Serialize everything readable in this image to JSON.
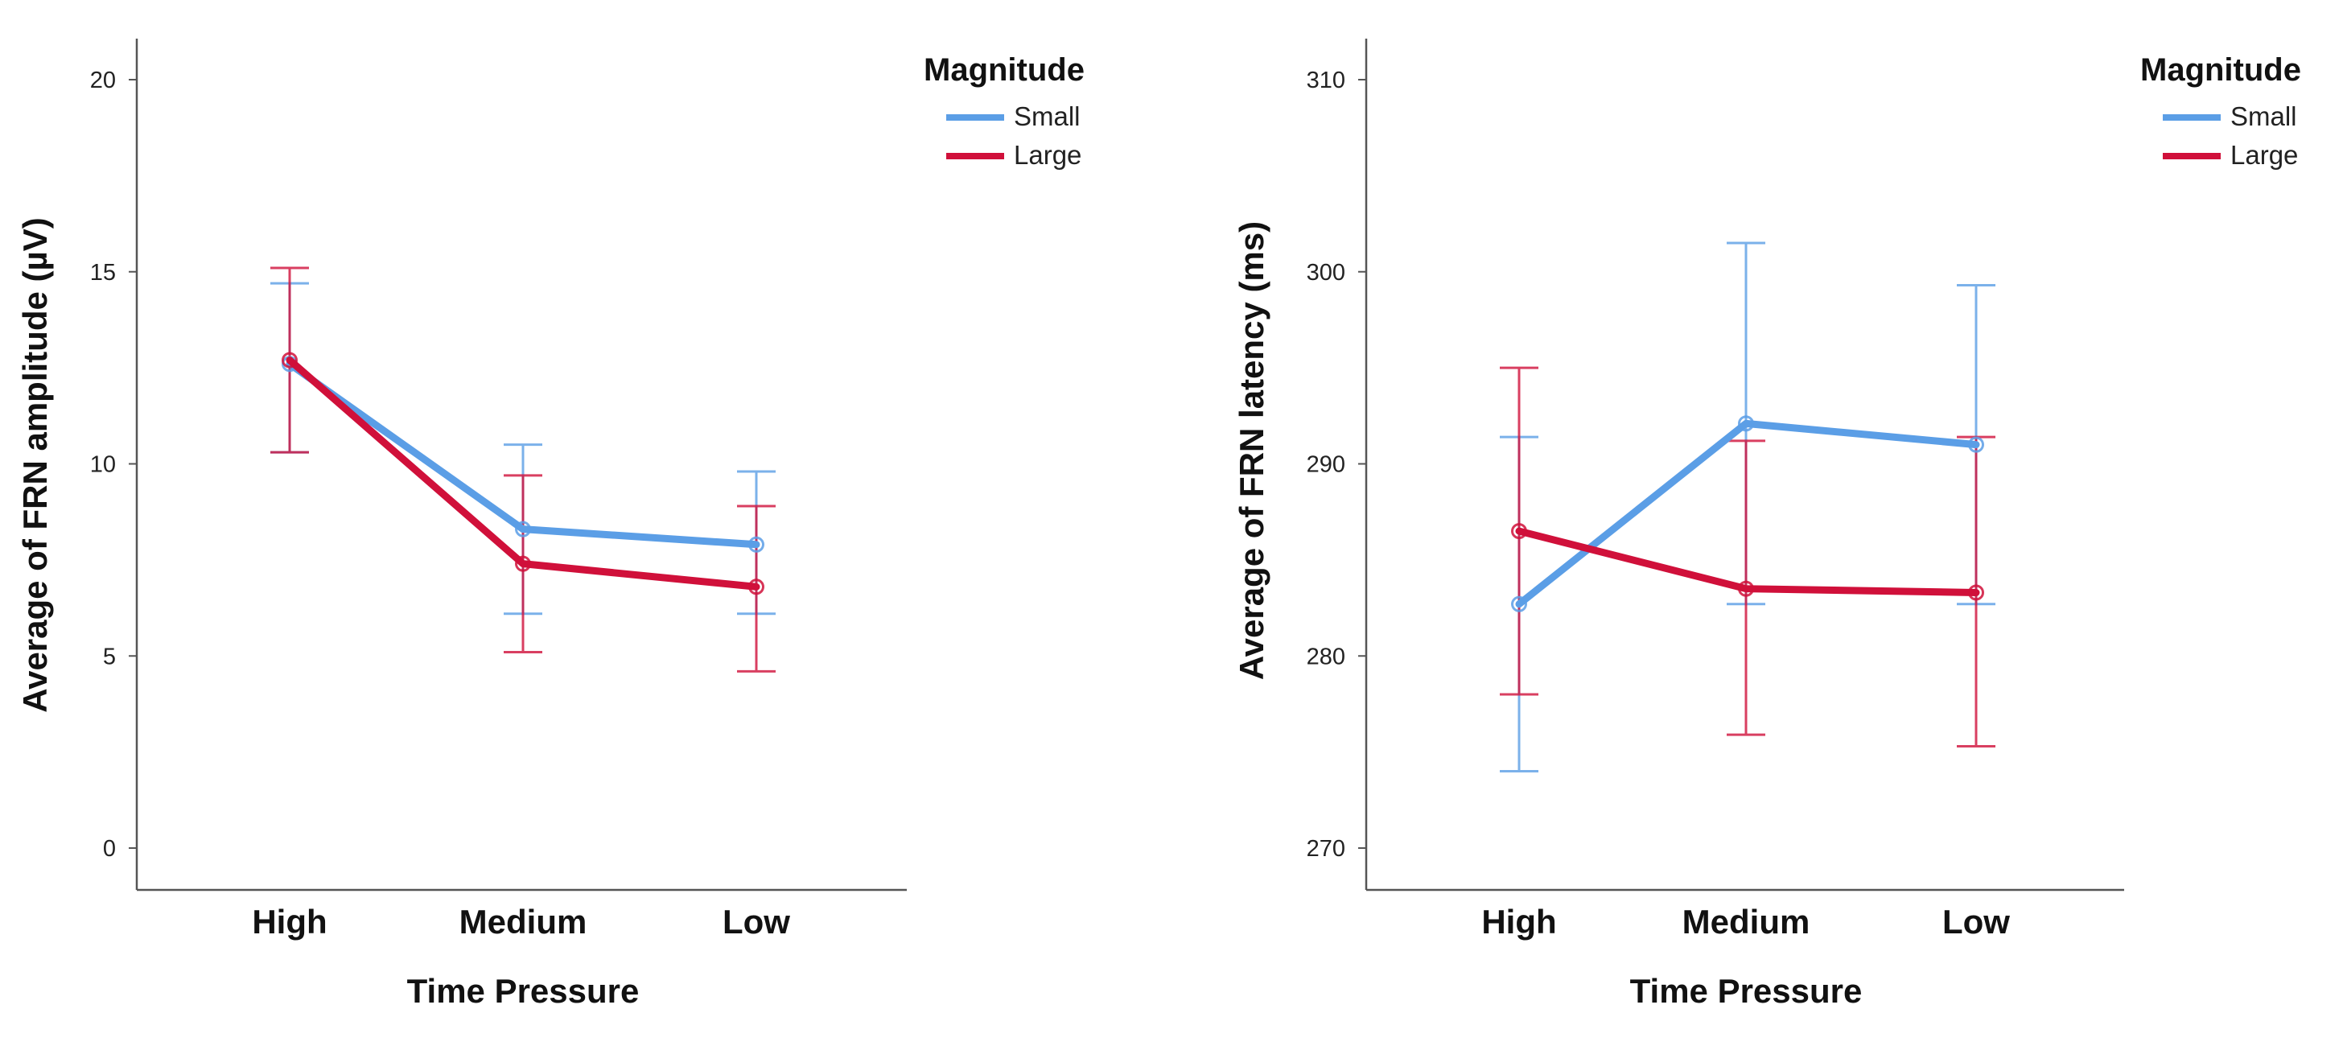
{
  "chart_data": [
    {
      "type": "line",
      "title": "",
      "xlabel": "Time Pressure",
      "ylabel": "Average of FRN amplitude (µV)",
      "categories": [
        "High",
        "Medium",
        "Low"
      ],
      "ylim": [
        -1,
        21
      ],
      "yticks": [
        "0",
        "5",
        "10",
        "15",
        "20"
      ],
      "grid": false,
      "legend": {
        "title": "Magnitude",
        "placement": "top-right-outside"
      },
      "series": [
        {
          "name": "Small",
          "color": "#5b9ee6",
          "values": [
            12.6,
            8.3,
            7.9
          ],
          "err_low": [
            10.3,
            6.1,
            6.1
          ],
          "err_high": [
            14.7,
            10.5,
            9.8
          ]
        },
        {
          "name": "Large",
          "color": "#d0103a",
          "values": [
            12.7,
            7.4,
            6.8
          ],
          "err_low": [
            10.3,
            5.1,
            4.6
          ],
          "err_high": [
            15.1,
            9.7,
            8.9
          ]
        }
      ]
    },
    {
      "type": "line",
      "title": "",
      "xlabel": "Time Pressure",
      "ylabel": "Average of FRN latency (ms)",
      "categories": [
        "High",
        "Medium",
        "Low"
      ],
      "ylim": [
        269,
        311
      ],
      "yticks": [
        "270",
        "280",
        "290",
        "300",
        "310"
      ],
      "grid": false,
      "legend": {
        "title": "Magnitude",
        "placement": "top-right-outside"
      },
      "series": [
        {
          "name": "Small",
          "color": "#5b9ee6",
          "values": [
            282.7,
            292.1,
            291.0
          ],
          "err_low": [
            274.0,
            282.7,
            282.7
          ],
          "err_high": [
            291.4,
            301.5,
            299.3
          ]
        },
        {
          "name": "Large",
          "color": "#d0103a",
          "values": [
            286.5,
            283.5,
            283.3
          ],
          "err_low": [
            278.0,
            275.9,
            275.3
          ],
          "err_high": [
            295.0,
            291.2,
            291.4
          ]
        }
      ]
    }
  ]
}
